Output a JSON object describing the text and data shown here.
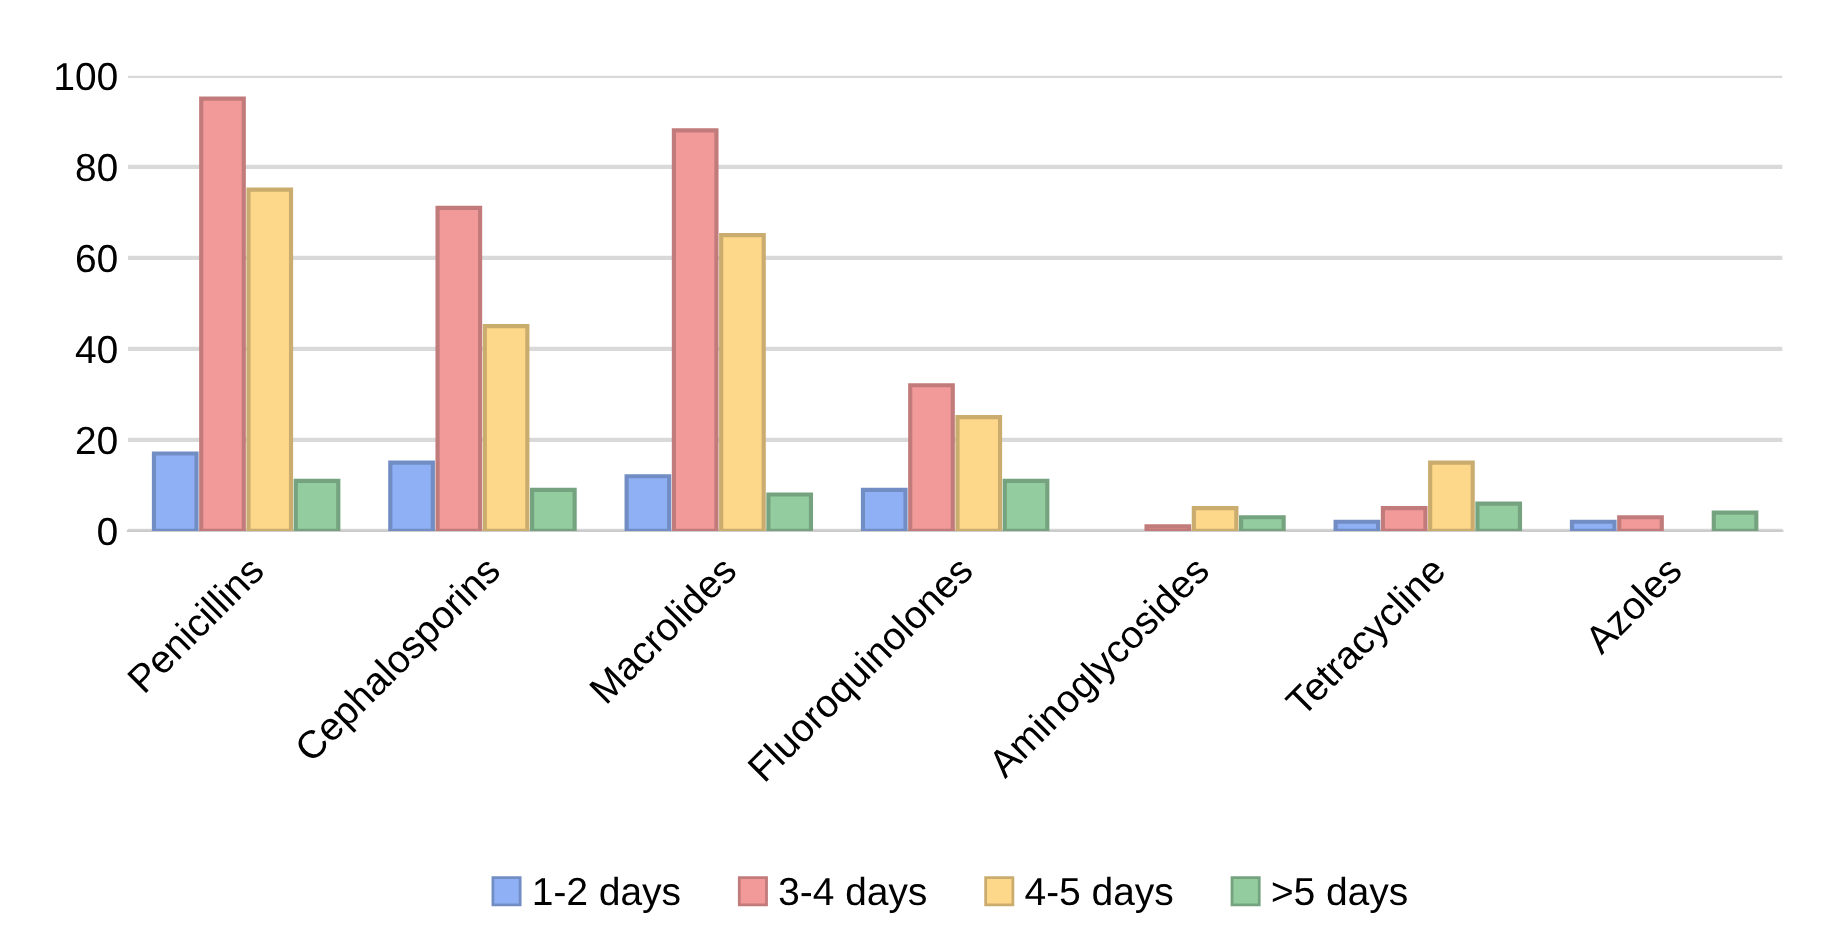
{
  "chart_data": {
    "type": "bar",
    "categories": [
      "Penicillins",
      "Cephalosporins",
      "Macrolides",
      "Fluoroquinolones",
      "Aminoglycosides",
      "Tetracycline",
      "Azoles"
    ],
    "series": [
      {
        "name": "1-2 days",
        "color": "#8fb0f5",
        "values": [
          17,
          15,
          12,
          9,
          null,
          2,
          2
        ]
      },
      {
        "name": "3-4 days",
        "color": "#f29a9a",
        "values": [
          95,
          71,
          88,
          32,
          1,
          5,
          3
        ]
      },
      {
        "name": "4-5 days",
        "color": "#fdd78a",
        "values": [
          75,
          45,
          65,
          25,
          5,
          15,
          null
        ]
      },
      {
        "name": ">5 days",
        "color": "#93cc9f",
        "values": [
          11,
          9,
          8,
          11,
          3,
          6,
          4
        ]
      }
    ],
    "ylim": [
      0,
      100
    ],
    "yticks": [
      0,
      20,
      40,
      60,
      80,
      100
    ],
    "grid": "y",
    "legend": "bottom"
  }
}
